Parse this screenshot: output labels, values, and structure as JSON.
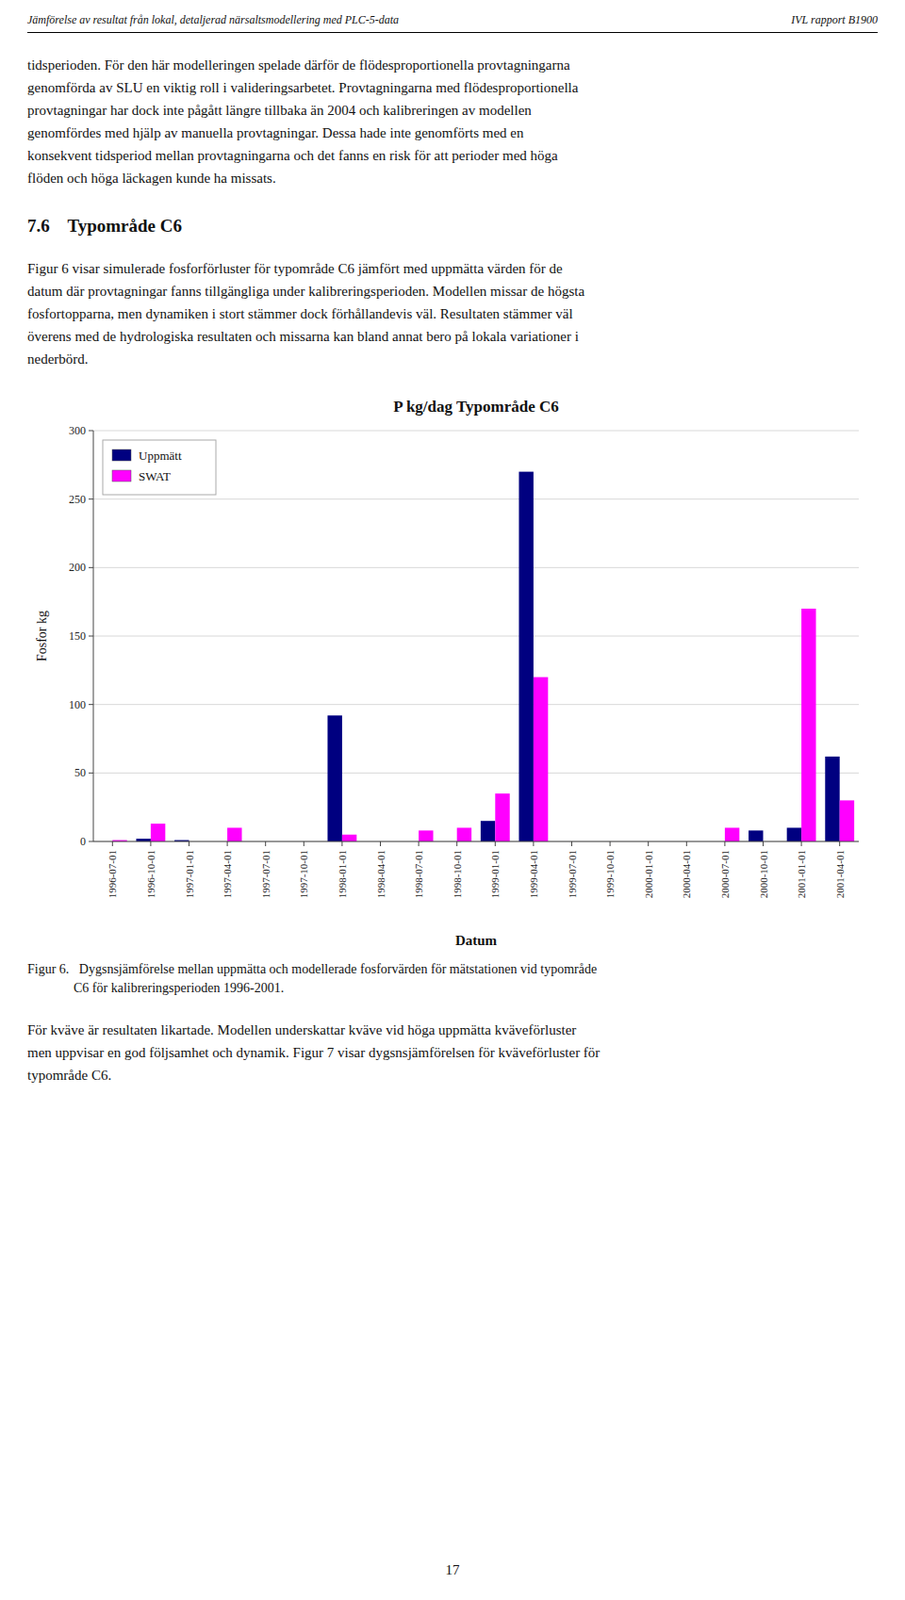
{
  "page": {
    "header_left": "Jämförelse av resultat från lokal, detaljerad närsaltsmodellering med PLC-5-data",
    "header_right": "IVL rapport  B1900",
    "para1_lines": [
      "tidsperioden. För den här modelleringen spelade därför de flödesproportionella provtagningarna",
      "genomförda av SLU en viktig roll i valideringsarbetet. Provtagningarna med flödesproportionella",
      "provtagningar har dock inte pågått längre tillbaka än 2004 och kalibreringen av modellen",
      "genomfördes med hjälp av manuella provtagningar. Dessa hade inte genomförts med en",
      "konsekvent tidsperiod mellan provtagningarna och det fanns en risk för att perioder med höga",
      "flöden och höga läckagen kunde ha missats."
    ],
    "section_title": "7.6    Typområde C6",
    "para2_lines": [
      "Figur 6 visar simulerade fosforförluster för typområde C6 jämfört med uppmätta värden för de",
      "datum där provtagningar fanns tillgängliga under kalibreringsperioden. Modellen missar de högsta",
      "fosfortopparna, men dynamiken i stort stämmer dock förhållandevis väl. Resultaten stämmer väl",
      "överens med de hydrologiska resultaten och missarna kan bland annat bero på lokala variationer i",
      "nederbörd."
    ],
    "fig_caption_lines": [
      "Figur 6.   Dygsnsjämförelse mellan uppmätta och modellerade fosforvärden för mätstationen vid typområde",
      "              C6 för kalibreringsperioden 1996-2001."
    ],
    "para3_lines": [
      "För kväve är resultaten likartade. Modellen underskattar kväve vid höga uppmätta kväveförluster",
      "men uppvisar en god följsamhet och dynamik. Figur 7 visar dygsnsjämförelsen för kväveförluster för",
      "typområde C6."
    ],
    "page_number": "17"
  },
  "chart_data": {
    "type": "bar",
    "title": "P kg/dag Typområde C6",
    "x_label": "Datum",
    "y_label": "Fosfor kg",
    "categories": [
      "1996-07-01",
      "1996-10-01",
      "1997-01-01",
      "1997-04-01",
      "1997-07-01",
      "1997-10-01",
      "1998-01-01",
      "1998-04-01",
      "1998-07-01",
      "1998-10-01",
      "1999-01-01",
      "1999-04-01",
      "1999-07-01",
      "1999-10-01",
      "2000-01-01",
      "2000-04-01",
      "2000-07-01",
      "2000-10-01",
      "2001-01-01",
      "2001-04-01"
    ],
    "series": [
      {
        "name": "Uppmätt",
        "color": "#000080",
        "values": [
          0,
          2,
          1,
          0,
          0,
          0,
          92,
          0,
          0,
          0,
          15,
          270,
          0,
          0,
          0,
          0,
          0,
          8,
          10,
          62
        ]
      },
      {
        "name": "SWAT",
        "color": "#FF00FF",
        "values": [
          1,
          13,
          0,
          10,
          0,
          0,
          5,
          0,
          8,
          10,
          35,
          120,
          0,
          0,
          0,
          0,
          10,
          0,
          170,
          30
        ]
      }
    ],
    "ylim": [
      0,
      300
    ],
    "yticks": [
      0,
      50,
      100,
      150,
      200,
      250,
      300
    ],
    "grid": true,
    "legend": "upper-left"
  }
}
